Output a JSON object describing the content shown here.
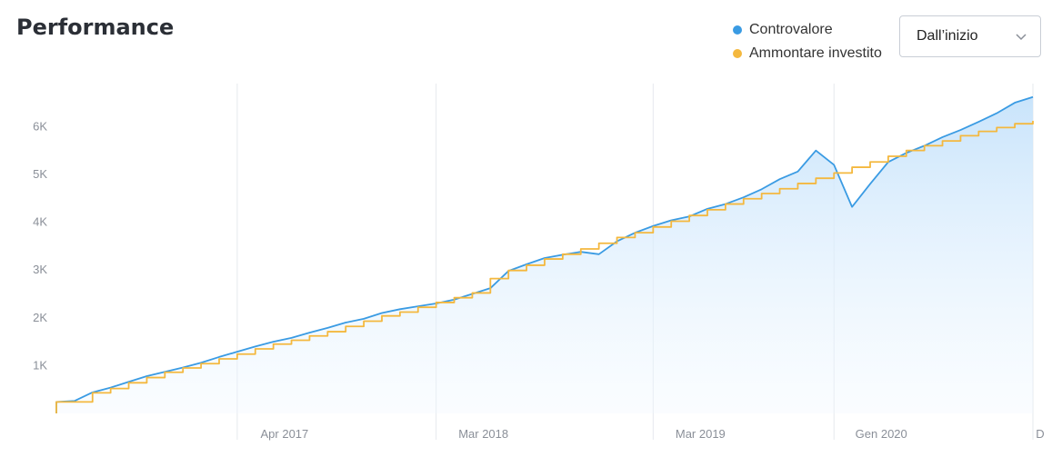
{
  "header": {
    "title": "Performance"
  },
  "legend": [
    {
      "label": "Controvalore",
      "color": "#3a9be3"
    },
    {
      "label": "Ammontare investito",
      "color": "#f4b83e"
    }
  ],
  "range_select": {
    "value": "Dall’inizio",
    "icon": "chevron-down-icon"
  },
  "chart_data": {
    "type": "line",
    "title": "",
    "xlabel": "",
    "ylabel": "",
    "ylim": [
      0,
      6900
    ],
    "grid": "vertical",
    "legend_placement": "top-right",
    "x_range": [
      "2016-06",
      "2020-12"
    ],
    "y_ticks": [
      {
        "label": "1K",
        "value": 1000
      },
      {
        "label": "2K",
        "value": 2000
      },
      {
        "label": "3K",
        "value": 3000
      },
      {
        "label": "4K",
        "value": 4000
      },
      {
        "label": "5K",
        "value": 5000
      },
      {
        "label": "6K",
        "value": 6000
      }
    ],
    "x_ticks": [
      {
        "label": "Apr 2017",
        "x": "2017-04"
      },
      {
        "label": "Mar 2018",
        "x": "2018-03"
      },
      {
        "label": "Mar 2019",
        "x": "2019-03"
      },
      {
        "label": "Gen 2020",
        "x": "2020-01"
      },
      {
        "label": "D",
        "x": "2020-12"
      }
    ],
    "series": [
      {
        "name": "Controvalore",
        "color": "#3a9be3",
        "area": true,
        "points": [
          [
            "2016-06",
            0
          ],
          [
            "2016-06",
            240
          ],
          [
            "2016-07",
            260
          ],
          [
            "2016-08",
            440
          ],
          [
            "2016-09",
            540
          ],
          [
            "2016-10",
            660
          ],
          [
            "2016-11",
            780
          ],
          [
            "2016-12",
            870
          ],
          [
            "2017-01",
            960
          ],
          [
            "2017-02",
            1060
          ],
          [
            "2017-03",
            1180
          ],
          [
            "2017-04",
            1290
          ],
          [
            "2017-05",
            1400
          ],
          [
            "2017-06",
            1500
          ],
          [
            "2017-07",
            1580
          ],
          [
            "2017-08",
            1690
          ],
          [
            "2017-09",
            1790
          ],
          [
            "2017-10",
            1900
          ],
          [
            "2017-11",
            1980
          ],
          [
            "2017-12",
            2100
          ],
          [
            "2018-01",
            2180
          ],
          [
            "2018-02",
            2240
          ],
          [
            "2018-03",
            2300
          ],
          [
            "2018-04",
            2380
          ],
          [
            "2018-05",
            2500
          ],
          [
            "2018-06",
            2620
          ],
          [
            "2018-07",
            2980
          ],
          [
            "2018-08",
            3120
          ],
          [
            "2018-09",
            3250
          ],
          [
            "2018-10",
            3320
          ],
          [
            "2018-11",
            3380
          ],
          [
            "2018-12",
            3330
          ],
          [
            "2019-01",
            3600
          ],
          [
            "2019-02",
            3780
          ],
          [
            "2019-03",
            3920
          ],
          [
            "2019-04",
            4040
          ],
          [
            "2019-05",
            4120
          ],
          [
            "2019-06",
            4280
          ],
          [
            "2019-07",
            4380
          ],
          [
            "2019-08",
            4520
          ],
          [
            "2019-09",
            4690
          ],
          [
            "2019-10",
            4900
          ],
          [
            "2019-11",
            5060
          ],
          [
            "2019-12",
            5500
          ],
          [
            "2020-01",
            5200
          ],
          [
            "2020-02",
            4320
          ],
          [
            "2020-03",
            4800
          ],
          [
            "2020-04",
            5260
          ],
          [
            "2020-05",
            5450
          ],
          [
            "2020-06",
            5600
          ],
          [
            "2020-07",
            5780
          ],
          [
            "2020-08",
            5930
          ],
          [
            "2020-09",
            6100
          ],
          [
            "2020-10",
            6280
          ],
          [
            "2020-11",
            6500
          ],
          [
            "2020-12",
            6620
          ]
        ]
      },
      {
        "name": "Ammontare investito",
        "color": "#f4b83e",
        "step": true,
        "points": [
          [
            "2016-06",
            0
          ],
          [
            "2016-06",
            240
          ],
          [
            "2016-07",
            240
          ],
          [
            "2016-08",
            430
          ],
          [
            "2016-09",
            520
          ],
          [
            "2016-10",
            640
          ],
          [
            "2016-11",
            750
          ],
          [
            "2016-12",
            860
          ],
          [
            "2017-01",
            950
          ],
          [
            "2017-02",
            1040
          ],
          [
            "2017-03",
            1140
          ],
          [
            "2017-04",
            1240
          ],
          [
            "2017-05",
            1350
          ],
          [
            "2017-06",
            1450
          ],
          [
            "2017-07",
            1530
          ],
          [
            "2017-08",
            1620
          ],
          [
            "2017-09",
            1710
          ],
          [
            "2017-10",
            1820
          ],
          [
            "2017-11",
            1930
          ],
          [
            "2017-12",
            2040
          ],
          [
            "2018-01",
            2120
          ],
          [
            "2018-02",
            2220
          ],
          [
            "2018-03",
            2320
          ],
          [
            "2018-04",
            2420
          ],
          [
            "2018-05",
            2520
          ],
          [
            "2018-06",
            2820
          ],
          [
            "2018-07",
            2990
          ],
          [
            "2018-08",
            3100
          ],
          [
            "2018-09",
            3230
          ],
          [
            "2018-10",
            3330
          ],
          [
            "2018-11",
            3440
          ],
          [
            "2018-12",
            3560
          ],
          [
            "2019-01",
            3680
          ],
          [
            "2019-02",
            3780
          ],
          [
            "2019-03",
            3900
          ],
          [
            "2019-04",
            4020
          ],
          [
            "2019-05",
            4140
          ],
          [
            "2019-06",
            4260
          ],
          [
            "2019-07",
            4380
          ],
          [
            "2019-08",
            4490
          ],
          [
            "2019-09",
            4600
          ],
          [
            "2019-10",
            4700
          ],
          [
            "2019-11",
            4810
          ],
          [
            "2019-12",
            4920
          ],
          [
            "2020-01",
            5030
          ],
          [
            "2020-02",
            5150
          ],
          [
            "2020-03",
            5260
          ],
          [
            "2020-04",
            5380
          ],
          [
            "2020-05",
            5500
          ],
          [
            "2020-06",
            5600
          ],
          [
            "2020-07",
            5700
          ],
          [
            "2020-08",
            5810
          ],
          [
            "2020-09",
            5900
          ],
          [
            "2020-10",
            5980
          ],
          [
            "2020-11",
            6060
          ],
          [
            "2020-12",
            6120
          ]
        ]
      }
    ]
  }
}
